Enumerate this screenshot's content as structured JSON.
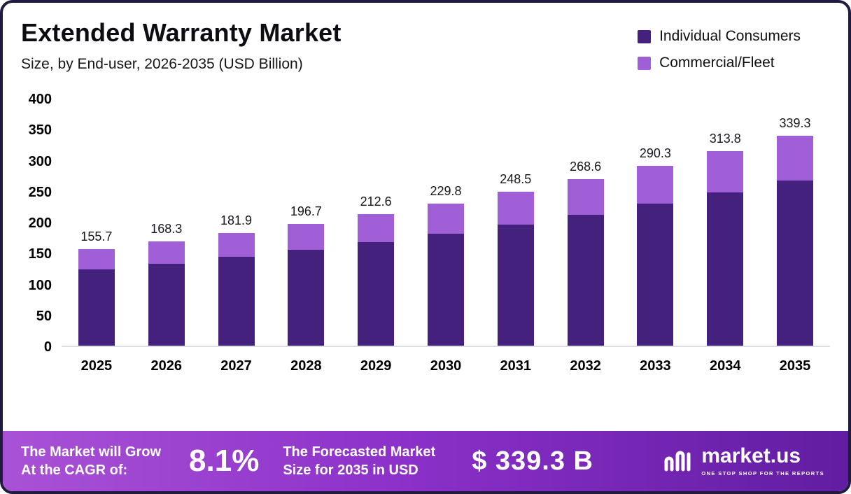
{
  "header": {
    "title": "Extended Warranty Market",
    "subtitle": "Size, by End-user, 2026-2035 (USD Billion)"
  },
  "chart_data": {
    "type": "bar",
    "stacked": true,
    "categories": [
      "2025",
      "2026",
      "2027",
      "2028",
      "2029",
      "2030",
      "2031",
      "2032",
      "2033",
      "2034",
      "2035"
    ],
    "series": [
      {
        "name": "Individual Consumers",
        "color": "#45217e",
        "values": [
          123.0,
          132.5,
          143.0,
          154.5,
          167.0,
          180.5,
          195.5,
          211.5,
          229.0,
          247.5,
          267.0
        ]
      },
      {
        "name": "Commercial/Fleet",
        "color": "#a05fd6",
        "values": [
          32.7,
          35.8,
          38.9,
          42.2,
          45.6,
          49.3,
          53.0,
          57.1,
          61.3,
          66.3,
          72.3
        ]
      }
    ],
    "totals": [
      155.7,
      168.3,
      181.9,
      196.7,
      212.6,
      229.8,
      248.5,
      268.6,
      290.3,
      313.8,
      339.3
    ],
    "title": "Extended Warranty Market Size, by End-user, 2026-2035 (USD Billion)",
    "xlabel": "",
    "ylabel": "",
    "ylim": [
      0,
      400
    ],
    "yticks": [
      0,
      50,
      100,
      150,
      200,
      250,
      300,
      350,
      400
    ],
    "grid": false,
    "legend_position": "top-right"
  },
  "footer": {
    "cagr_label_line1": "The Market will Grow",
    "cagr_label_line2": "At the CAGR of:",
    "cagr_value": "8.1%",
    "forecast_label_line1": "The Forecasted Market",
    "forecast_label_line2": "Size for 2035 in USD",
    "forecast_value": "$ 339.3 B",
    "brand_name": "market.us",
    "brand_tagline": "ONE STOP SHOP FOR THE REPORTS"
  }
}
